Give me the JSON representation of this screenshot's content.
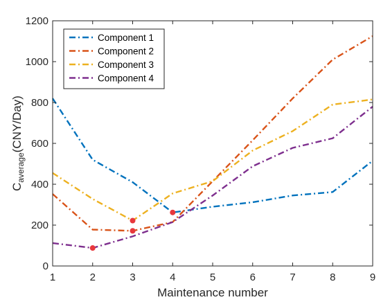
{
  "chart_data": {
    "type": "line",
    "xlabel": "Maintenance number",
    "ylabel": {
      "main": "C",
      "subscript": "average",
      "suffix": "(CNY/Day)"
    },
    "x": [
      1,
      2,
      3,
      4,
      5,
      6,
      7,
      8,
      9
    ],
    "xlim": [
      1,
      9
    ],
    "ylim": [
      0,
      1200
    ],
    "xticks": [
      "1",
      "2",
      "3",
      "4",
      "5",
      "6",
      "7",
      "8",
      "9"
    ],
    "yticks": [
      "0",
      "200",
      "400",
      "600",
      "800",
      "1000",
      "1200"
    ],
    "grid": false,
    "legend_position": "top-left",
    "series": [
      {
        "name": "Component 1",
        "color": "#0072BD",
        "values": [
          820,
          520,
          410,
          262,
          290,
          312,
          345,
          362,
          515
        ]
      },
      {
        "name": "Component 2",
        "color": "#D95319",
        "values": [
          352,
          178,
          172,
          215,
          415,
          615,
          820,
          1010,
          1125
        ]
      },
      {
        "name": "Component 3",
        "color": "#EDB120",
        "values": [
          455,
          328,
          222,
          355,
          415,
          565,
          660,
          790,
          815
        ]
      },
      {
        "name": "Component 4",
        "color": "#7E2F8E",
        "values": [
          112,
          88,
          145,
          215,
          345,
          488,
          578,
          625,
          780
        ]
      }
    ],
    "optimal_points": {
      "color": "#E8383D",
      "points": [
        {
          "x": 4,
          "y": 262
        },
        {
          "x": 3,
          "y": 172
        },
        {
          "x": 3,
          "y": 222
        },
        {
          "x": 2,
          "y": 88
        }
      ]
    }
  }
}
